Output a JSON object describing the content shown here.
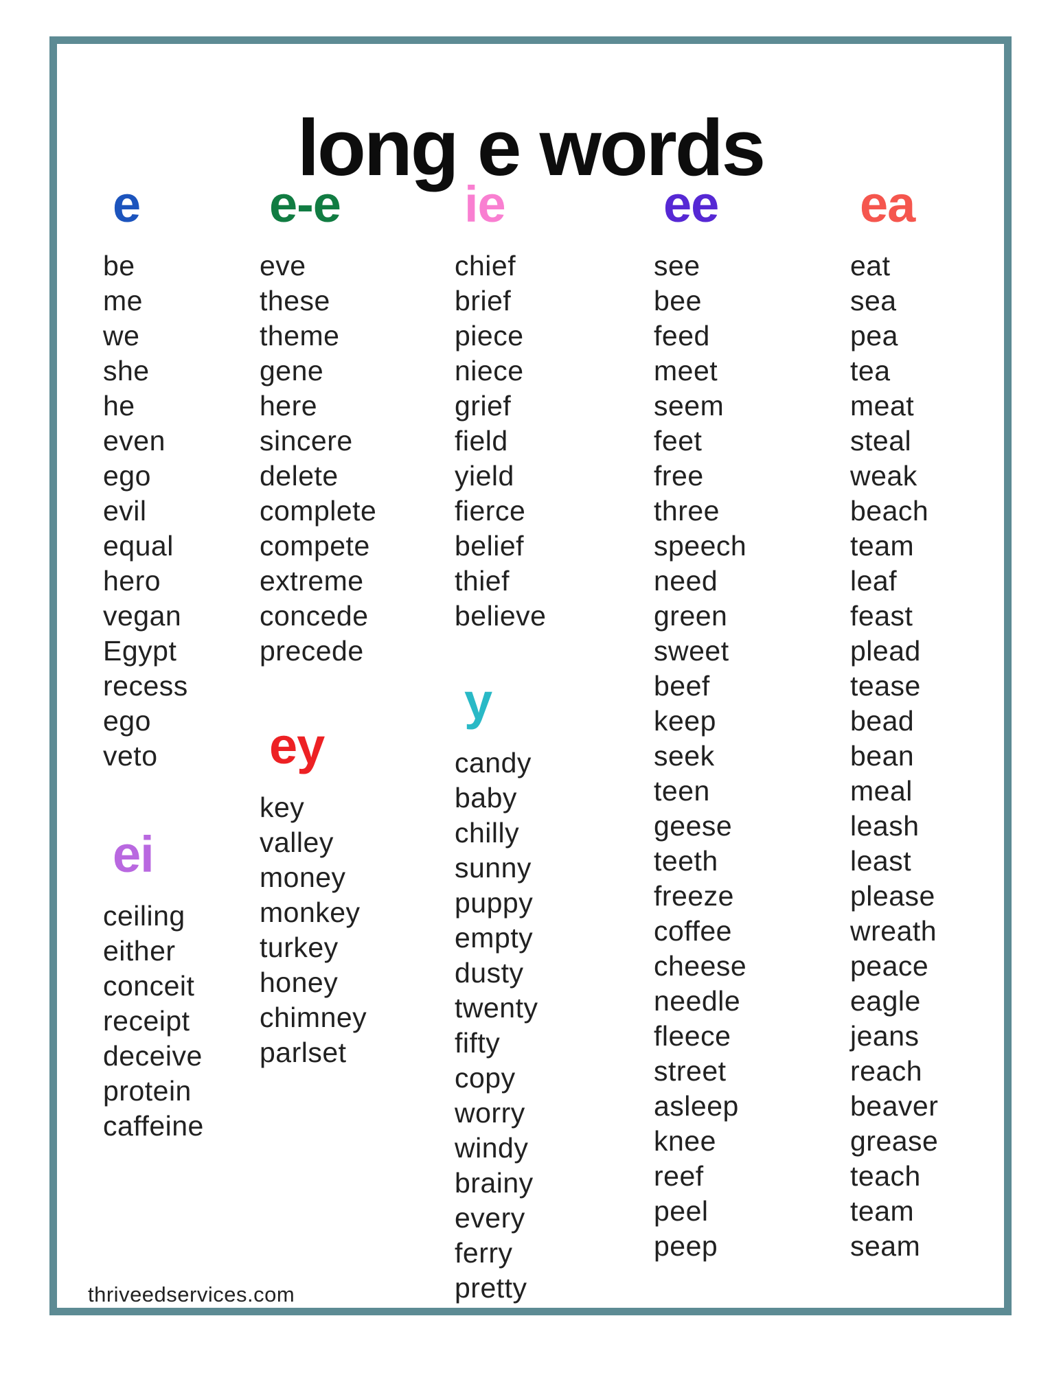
{
  "page": {
    "title": "long e words",
    "footer_url": "thriveedservices.com",
    "border_color": "#5d8b94",
    "title_color": "#0d0d0d",
    "word_color": "#212121"
  },
  "sections": {
    "e": {
      "label": "e",
      "color": "#1c54bd",
      "words": [
        "be",
        "me",
        "we",
        "she",
        "he",
        "even",
        "ego",
        "evil",
        "equal",
        "hero",
        "vegan",
        "Egypt",
        "recess",
        "ego",
        "veto"
      ]
    },
    "ei": {
      "label": "ei",
      "color": "#b968e0",
      "words": [
        "ceiling",
        "either",
        "conceit",
        "receipt",
        "deceive",
        "protein",
        "caffeine"
      ]
    },
    "e-e": {
      "label": "e-e",
      "color": "#117c42",
      "words": [
        "eve",
        "these",
        "theme",
        "gene",
        "here",
        "sincere",
        "delete",
        "complete",
        "compete",
        "extreme",
        "concede",
        "precede"
      ]
    },
    "ey": {
      "label": "ey",
      "color": "#ed2124",
      "words": [
        "key",
        "valley",
        "money",
        "monkey",
        "turkey",
        "honey",
        "chimney",
        "parlset"
      ]
    },
    "ie": {
      "label": "ie",
      "color": "#f97fd1",
      "words": [
        "chief",
        "brief",
        "piece",
        "niece",
        "grief",
        "field",
        "yield",
        "fierce",
        "belief",
        "thief",
        "believe"
      ]
    },
    "y": {
      "label": "y",
      "color": "#29b9c6",
      "words": [
        "candy",
        "baby",
        "chilly",
        "sunny",
        "puppy",
        "empty",
        "dusty",
        "twenty",
        "fifty",
        "copy",
        "worry",
        "windy",
        "brainy",
        "every",
        "ferry",
        "pretty"
      ]
    },
    "ee": {
      "label": "ee",
      "color": "#5628d4",
      "words": [
        "see",
        "bee",
        "feed",
        "meet",
        "seem",
        "feet",
        "free",
        "three",
        "speech",
        "need",
        "green",
        "sweet",
        "beef",
        "keep",
        "seek",
        "teen",
        "geese",
        "teeth",
        "freeze",
        "coffee",
        "cheese",
        "needle",
        "fleece",
        "street",
        "asleep",
        "knee",
        "reef",
        "peel",
        "peep"
      ]
    },
    "ea": {
      "label": "ea",
      "color": "#f5564e",
      "words": [
        "eat",
        "sea",
        "pea",
        "tea",
        "meat",
        "steal",
        "weak",
        "beach",
        "team",
        "leaf",
        "feast",
        "plead",
        "tease",
        "bead",
        "bean",
        "meal",
        "leash",
        "least",
        "please",
        "wreath",
        "peace",
        "eagle",
        "jeans",
        "reach",
        "beaver",
        "grease",
        "teach",
        "team",
        "seam"
      ]
    }
  },
  "columns": [
    [
      "e",
      "ei"
    ],
    [
      "e-e",
      "ey"
    ],
    [
      "ie",
      "y"
    ],
    [
      "ee"
    ],
    [
      "ea"
    ]
  ]
}
